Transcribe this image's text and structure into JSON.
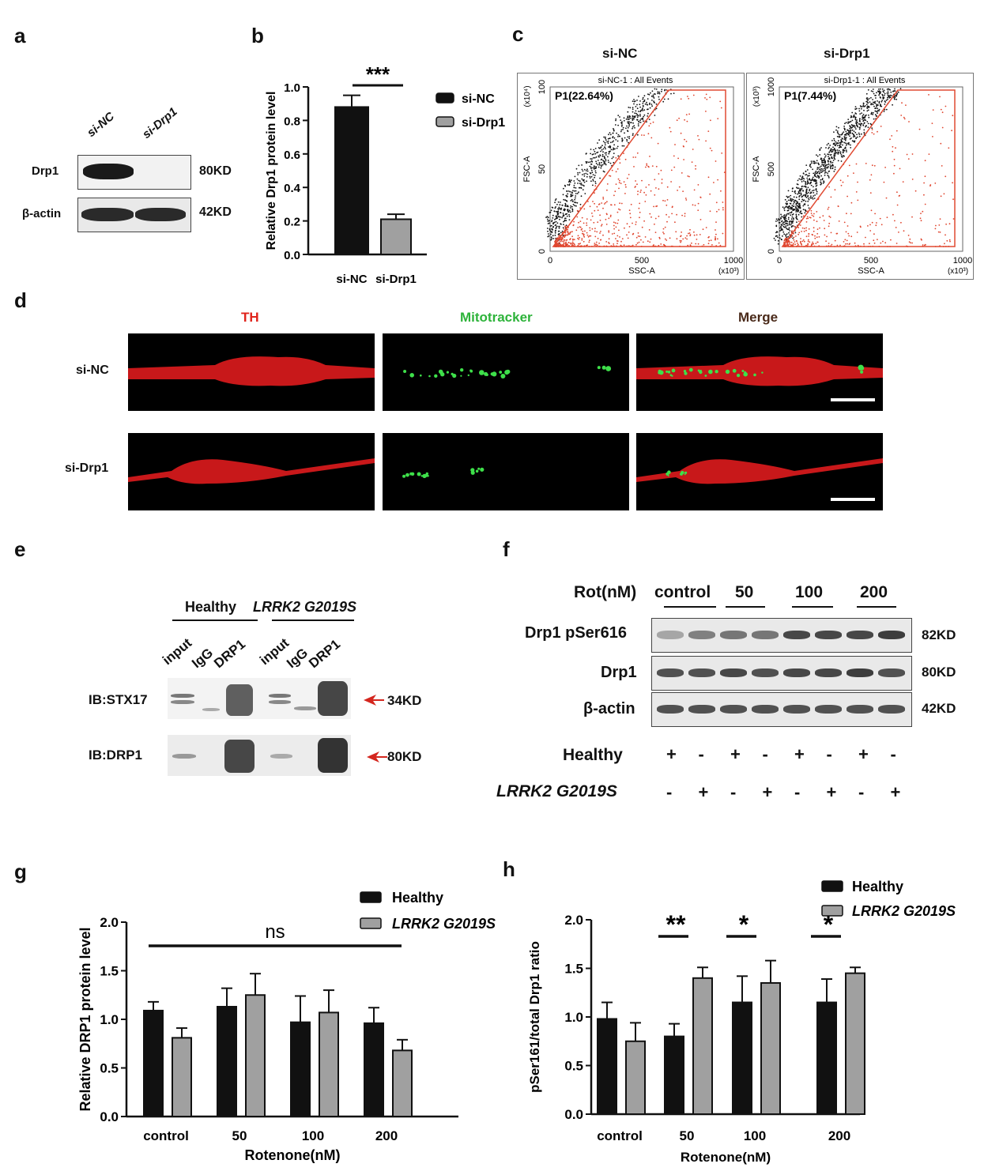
{
  "panels": {
    "a": "a",
    "b": "b",
    "c": "c",
    "d": "d",
    "e": "e",
    "f": "f",
    "g": "g",
    "h": "h"
  },
  "panel_a": {
    "lanes": [
      "si-NC",
      "si-Drp1"
    ],
    "rows": [
      {
        "label": "Drp1",
        "size": "80KD"
      },
      {
        "label": "β-actin",
        "size": "42KD"
      }
    ]
  },
  "panel_c": {
    "titles": [
      "si-NC",
      "si-Drp1"
    ],
    "plots": [
      {
        "header": "si-NC-1 : All Events",
        "gate": "P1(22.64%)",
        "ylabel": "FSC-A",
        "xlabel": "SSC-A",
        "ymult": "(x10⁴)",
        "xmult": "(x10³)",
        "yticks": [
          "0",
          "50",
          "100"
        ],
        "xticks": [
          "0",
          "500",
          "1000"
        ]
      },
      {
        "header": "si-Drp1-1 : All Events",
        "gate": "P1(7.44%)",
        "ylabel": "FSC-A",
        "xlabel": "SSC-A",
        "ymult": "(x10³)",
        "xmult": "(x10³)",
        "yticks": [
          "0",
          "500",
          "1000"
        ],
        "xticks": [
          "0",
          "500",
          "1000"
        ]
      }
    ]
  },
  "panel_d": {
    "columns": [
      "TH",
      "Mitotracker",
      "Merge"
    ],
    "rows": [
      "si-NC",
      "si-Drp1"
    ],
    "colors": {
      "TH": "#e0241c",
      "Mitotracker": "#2db33a",
      "Merge": "#4a2a1a"
    }
  },
  "panel_e": {
    "groups": [
      "Healthy",
      "LRRK2 G2019S"
    ],
    "lanes": [
      "input",
      "IgG",
      "DRP1",
      "input",
      "IgG",
      "DRP1"
    ],
    "rows": [
      {
        "label": "IB:STX17",
        "size": "34KD"
      },
      {
        "label": "IB:DRP1",
        "size": "80KD"
      }
    ]
  },
  "panel_f": {
    "treatment_label": "Rot(nM)",
    "groups": [
      "control",
      "50",
      "100",
      "200"
    ],
    "rows": [
      {
        "label": "Drp1 pSer616",
        "size": "82KD"
      },
      {
        "label": "Drp1",
        "size": "80KD"
      },
      {
        "label": "β-actin",
        "size": "42KD"
      }
    ],
    "genotype_rows": [
      {
        "label": "Healthy",
        "signs": [
          "+",
          "-",
          "+",
          "-",
          "+",
          "-",
          "+",
          "-"
        ]
      },
      {
        "label": "LRRK2 G2019S",
        "signs": [
          "-",
          "+",
          "-",
          "+",
          "-",
          "+",
          "-",
          "+"
        ]
      }
    ]
  },
  "chart_data": [
    {
      "id": "b",
      "type": "bar",
      "categories": [
        "si-NC",
        "si-Drp1"
      ],
      "values": [
        0.88,
        0.21
      ],
      "errors": [
        0.07,
        0.03
      ],
      "ylabel": "Relative Drp1 protein level",
      "ylim": [
        0,
        1.0
      ],
      "yticks": [
        "0.0",
        "0.2",
        "0.4",
        "0.6",
        "0.8",
        "1.0"
      ],
      "legend": [
        "si-NC",
        "si-Drp1"
      ],
      "annotation": "***",
      "colors": [
        "#111111",
        "#a0a0a0"
      ]
    },
    {
      "id": "g",
      "type": "bar",
      "categories": [
        "control",
        "50",
        "100",
        "200"
      ],
      "series": [
        {
          "name": "Healthy",
          "values": [
            1.09,
            1.13,
            0.97,
            0.96
          ],
          "errors": [
            0.09,
            0.19,
            0.27,
            0.16
          ]
        },
        {
          "name": "LRRK2 G2019S",
          "values": [
            0.81,
            1.25,
            1.07,
            0.68
          ],
          "errors": [
            0.1,
            0.22,
            0.23,
            0.11
          ]
        }
      ],
      "xlabel": "Rotenone(nM)",
      "ylabel": "Relative DRP1 protein level",
      "ylim": [
        0,
        2.0
      ],
      "yticks": [
        "0.0",
        "0.5",
        "1.0",
        "1.5",
        "2.0"
      ],
      "annotation": "ns",
      "colors": [
        "#111111",
        "#a0a0a0"
      ]
    },
    {
      "id": "h",
      "type": "bar",
      "categories": [
        "control",
        "50",
        "100",
        "200"
      ],
      "series": [
        {
          "name": "Healthy",
          "values": [
            0.98,
            0.8,
            1.15,
            1.15
          ],
          "errors": [
            0.17,
            0.13,
            0.27,
            0.24
          ]
        },
        {
          "name": "LRRK2 G2019S",
          "values": [
            0.75,
            1.4,
            1.35,
            1.45
          ],
          "errors": [
            0.19,
            0.11,
            0.23,
            0.06
          ]
        }
      ],
      "xlabel": "Rotenone(nM)",
      "ylabel": "pSer161/total Drp1 ratio",
      "ylim": [
        0,
        2.0
      ],
      "yticks": [
        "0.0",
        "0.5",
        "1.0",
        "1.5",
        "2.0"
      ],
      "significance": [
        "",
        "**",
        "*",
        "*"
      ],
      "colors": [
        "#111111",
        "#a0a0a0"
      ]
    }
  ]
}
